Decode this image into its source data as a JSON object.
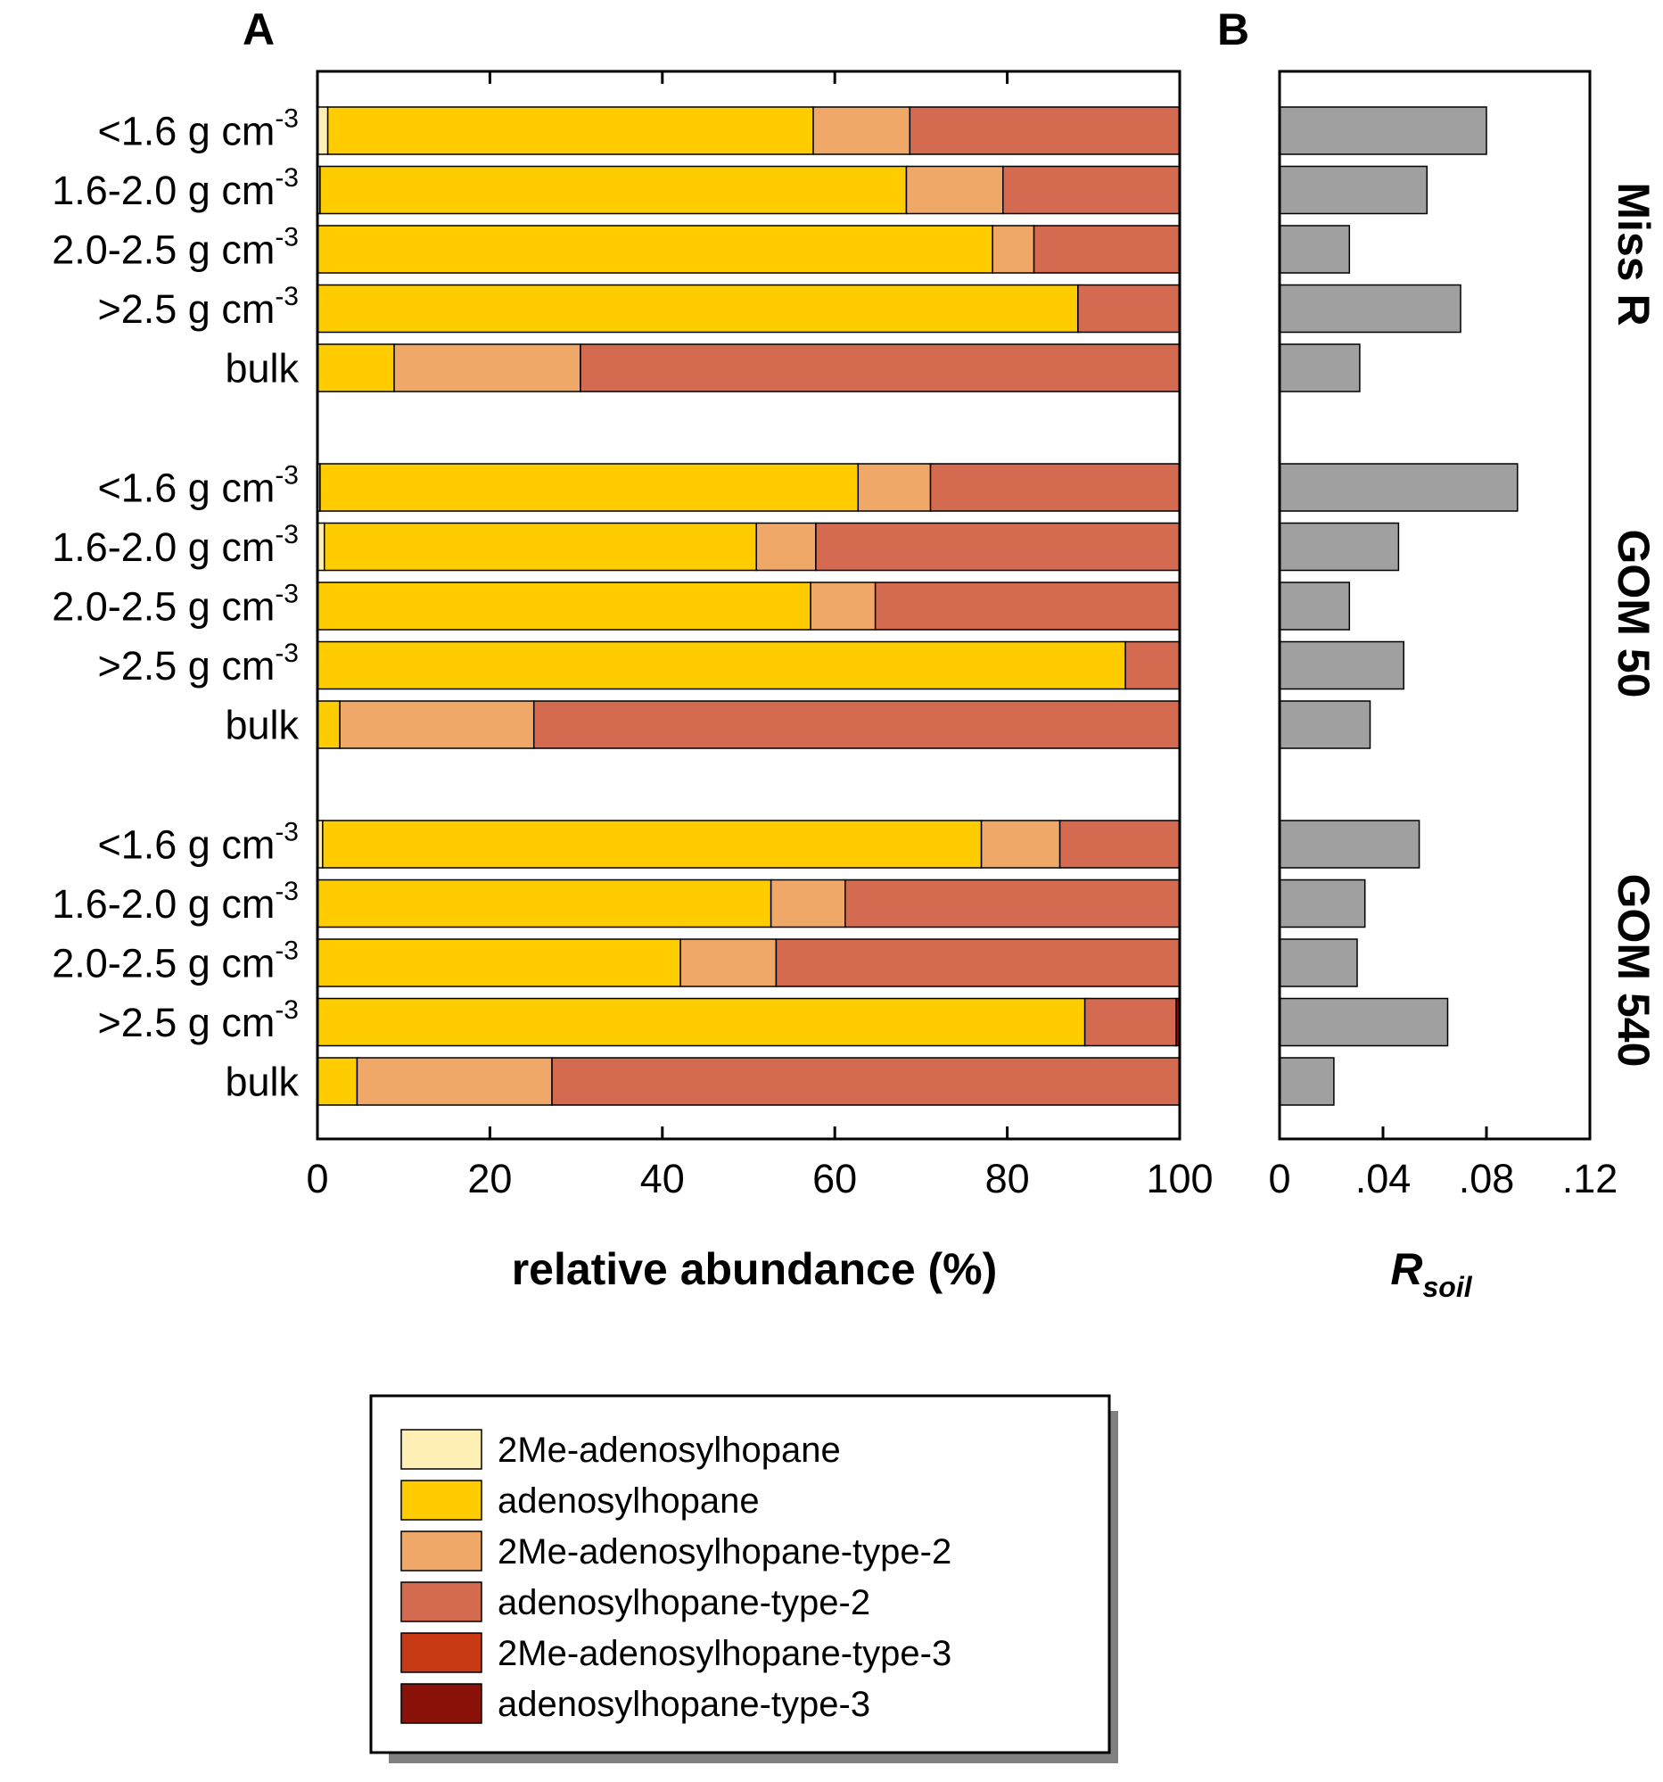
{
  "chart_data": [
    {
      "panel": "A",
      "type": "bar",
      "orientation": "horizontal",
      "stacked": true,
      "xlabel": "relative abundance (%)",
      "xlim": [
        0,
        100
      ],
      "xticks": [
        "0",
        "20",
        "40",
        "60",
        "80",
        "100"
      ],
      "groups": [
        {
          "name": "Miss R",
          "categories": [
            "<1.6 g cm",
            "1.6-2.0 g cm",
            "2.0-2.5 g cm",
            ">2.5 g cm",
            "bulk"
          ],
          "unit_superscript": [
            "-3",
            "-3",
            "-3",
            "-3",
            ""
          ],
          "rows": [
            [
              1.2,
              56.3,
              11.2,
              31.3,
              0,
              0
            ],
            [
              0.3,
              68.0,
              11.2,
              20.5,
              0,
              0
            ],
            [
              0,
              78.3,
              4.8,
              16.9,
              0,
              0
            ],
            [
              0,
              88.2,
              0,
              11.8,
              0,
              0
            ],
            [
              0,
              8.9,
              21.6,
              69.5,
              0,
              0
            ]
          ]
        },
        {
          "name": "GOM 50",
          "categories": [
            "<1.6 g cm",
            "1.6-2.0 g cm",
            "2.0-2.5 g cm",
            ">2.5 g cm",
            "bulk"
          ],
          "unit_superscript": [
            "-3",
            "-3",
            "-3",
            "-3",
            ""
          ],
          "rows": [
            [
              0.3,
              62.4,
              8.4,
              28.9,
              0,
              0
            ],
            [
              0.8,
              50.1,
              6.9,
              42.2,
              0,
              0
            ],
            [
              0,
              57.2,
              7.5,
              35.3,
              0,
              0
            ],
            [
              0,
              93.7,
              0,
              6.3,
              0,
              0
            ],
            [
              0,
              2.6,
              22.5,
              74.9,
              0,
              0
            ]
          ]
        },
        {
          "name": "GOM 540",
          "categories": [
            "<1.6 g cm",
            "1.6-2.0 g cm",
            "2.0-2.5 g cm",
            ">2.5 g cm",
            "bulk"
          ],
          "unit_superscript": [
            "-3",
            "-3",
            "-3",
            "-3",
            ""
          ],
          "rows": [
            [
              0.6,
              76.4,
              9.1,
              13.9,
              0,
              0
            ],
            [
              0,
              52.6,
              8.6,
              38.8,
              0,
              0
            ],
            [
              0,
              42.1,
              11.1,
              46.8,
              0,
              0
            ],
            [
              0,
              89.0,
              0,
              10.6,
              0,
              0.4
            ],
            [
              0,
              4.6,
              22.6,
              72.8,
              0,
              0
            ]
          ]
        }
      ],
      "series": [
        {
          "name": "2Me-adenosylhopane",
          "color": "#FFEFB5"
        },
        {
          "name": "adenosylhopane",
          "color": "#FFCC00"
        },
        {
          "name": "2Me-adenosylhopane-type-2",
          "color": "#F0A868"
        },
        {
          "name": "adenosylhopane-type-2",
          "color": "#D46A50"
        },
        {
          "name": "2Me-adenosylhopane-type-3",
          "color": "#C83A14"
        },
        {
          "name": "adenosylhopane-type-3",
          "color": "#8A1208"
        }
      ]
    },
    {
      "panel": "B",
      "type": "bar",
      "orientation": "horizontal",
      "xlabel": "R",
      "xlabel_subscript": "soil",
      "xlim": [
        0,
        0.12
      ],
      "xticks": [
        "0",
        ".04",
        ".08",
        ".12"
      ],
      "bar_color": "#A0A0A0",
      "values": [
        [
          0.08,
          0.057,
          0.027,
          0.07,
          0.031
        ],
        [
          0.092,
          0.046,
          0.027,
          0.048,
          0.035
        ],
        [
          0.054,
          0.033,
          0.03,
          0.065,
          0.021
        ]
      ]
    }
  ],
  "panel_labels": {
    "a": "A",
    "b": "B"
  },
  "group_labels": [
    "Miss R",
    "GOM 50",
    "GOM 540"
  ]
}
